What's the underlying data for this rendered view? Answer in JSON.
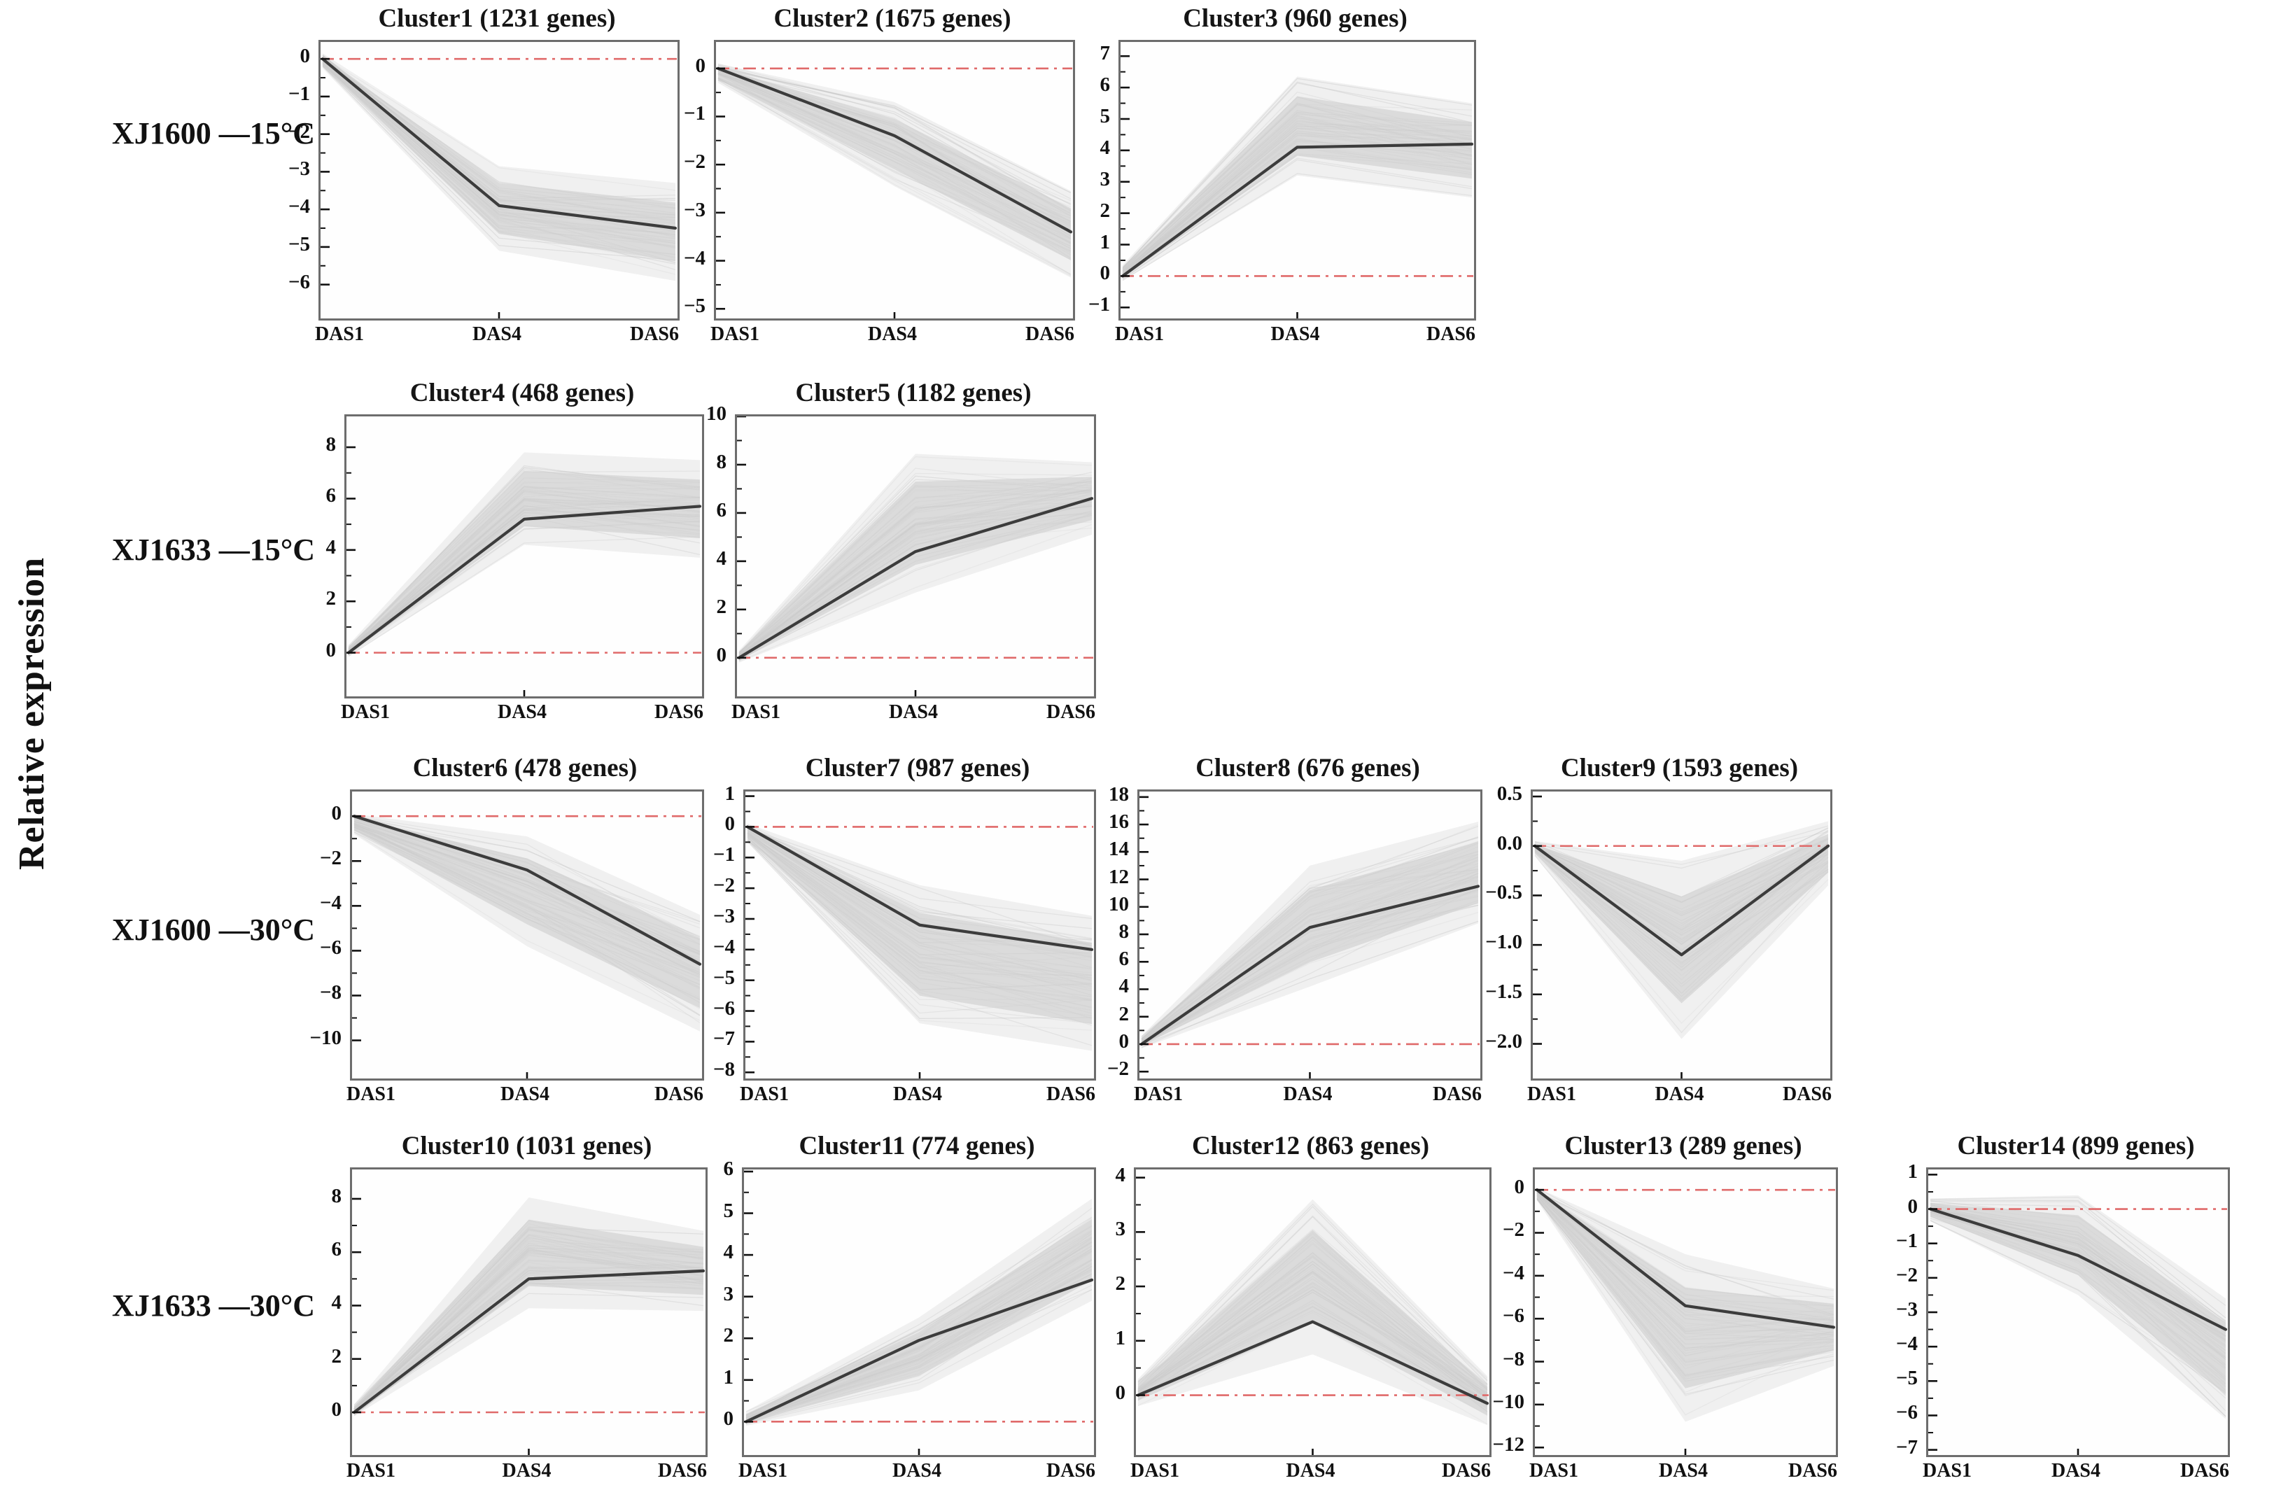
{
  "figure": {
    "ylabel": "Relative expression",
    "x_categories": [
      "DAS1",
      "DAS4",
      "DAS6"
    ],
    "row_labels": [
      "XJ1600 —15°C",
      "XJ1633 —15°C",
      "XJ1600 —30°C",
      "XJ1633 —30°C"
    ]
  },
  "colors": {
    "zero_line": "#e06a6a",
    "mean_line": "#3c3c3c",
    "band_outer": "#e4e4e4",
    "band_inner": "#d2d2d2",
    "thin_line": "#b9b9b9",
    "panel_border": "#6d6d6d",
    "tick": "#111111"
  },
  "chart_data": [
    {
      "type": "line",
      "title": "Cluster1 (1231 genes)",
      "row": 0,
      "col": 0,
      "x": [
        "DAS1",
        "DAS4",
        "DAS6"
      ],
      "series": [
        {
          "name": "cluster mean",
          "values": [
            0,
            -3.9,
            -4.5
          ]
        }
      ],
      "band_low": [
        -0.25,
        -5.1,
        -5.9
      ],
      "band_high": [
        0.15,
        -2.85,
        -3.3
      ],
      "ylim": [
        -6.9,
        0.45
      ],
      "yticks": [
        0,
        -1,
        -2,
        -3,
        -4,
        -5,
        -6
      ],
      "ytick_labels": [
        "0",
        "−1",
        "−2",
        "−3",
        "−4",
        "−5",
        "−6"
      ],
      "zero_line": 0
    },
    {
      "type": "line",
      "title": "Cluster2 (1675 genes)",
      "row": 0,
      "col": 1,
      "x": [
        "DAS1",
        "DAS4",
        "DAS6"
      ],
      "series": [
        {
          "name": "cluster mean",
          "values": [
            0,
            -1.4,
            -3.4
          ]
        }
      ],
      "band_low": [
        -0.3,
        -2.45,
        -4.35
      ],
      "band_high": [
        0.1,
        -0.7,
        -2.55
      ],
      "ylim": [
        -5.2,
        0.55
      ],
      "yticks": [
        0,
        -1,
        -2,
        -3,
        -4,
        -5
      ],
      "ytick_labels": [
        "0",
        "−1",
        "−2",
        "−3",
        "−4",
        "−5"
      ],
      "zero_line": 0
    },
    {
      "type": "line",
      "title": "Cluster3 (960 genes)",
      "row": 0,
      "col": 2,
      "x": [
        "DAS1",
        "DAS4",
        "DAS6"
      ],
      "series": [
        {
          "name": "cluster mean",
          "values": [
            0,
            4.1,
            4.2
          ]
        }
      ],
      "band_low": [
        -0.15,
        3.2,
        2.5
      ],
      "band_high": [
        0.35,
        6.35,
        5.5
      ],
      "ylim": [
        -1.35,
        7.45
      ],
      "yticks": [
        7,
        6,
        5,
        4,
        3,
        2,
        1,
        0,
        -1
      ],
      "ytick_labels": [
        "7",
        "6",
        "5",
        "4",
        "3",
        "2",
        "1",
        "0",
        "−1"
      ],
      "zero_line": 0
    },
    {
      "type": "line",
      "title": "Cluster4 (468 genes)",
      "row": 1,
      "col": 0,
      "x": [
        "DAS1",
        "DAS4",
        "DAS6"
      ],
      "series": [
        {
          "name": "cluster mean",
          "values": [
            0,
            5.2,
            5.7
          ]
        }
      ],
      "band_low": [
        -0.15,
        4.2,
        3.7
      ],
      "band_high": [
        0.3,
        7.8,
        7.5
      ],
      "ylim": [
        -1.7,
        9.2
      ],
      "yticks": [
        8,
        6,
        4,
        2,
        0
      ],
      "ytick_labels": [
        "8",
        "6",
        "4",
        "2",
        "0"
      ],
      "zero_line": 0
    },
    {
      "type": "line",
      "title": "Cluster5 (1182 genes)",
      "row": 1,
      "col": 1,
      "x": [
        "DAS1",
        "DAS4",
        "DAS6"
      ],
      "series": [
        {
          "name": "cluster mean",
          "values": [
            0,
            4.4,
            6.6
          ]
        }
      ],
      "band_low": [
        -0.2,
        2.7,
        5.1
      ],
      "band_high": [
        0.3,
        8.45,
        8.1
      ],
      "ylim": [
        -1.6,
        10
      ],
      "yticks": [
        10,
        8,
        6,
        4,
        2,
        0
      ],
      "ytick_labels": [
        "10",
        "8",
        "6",
        "4",
        "2",
        "0"
      ],
      "zero_line": 0
    },
    {
      "type": "line",
      "title": "Cluster6 (478 genes)",
      "row": 2,
      "col": 0,
      "x": [
        "DAS1",
        "DAS4",
        "DAS6"
      ],
      "series": [
        {
          "name": "cluster mean",
          "values": [
            0,
            -2.4,
            -6.6
          ]
        }
      ],
      "band_low": [
        -0.8,
        -5.8,
        -9.6
      ],
      "band_high": [
        0.1,
        -0.9,
        -4.4
      ],
      "ylim": [
        -11.7,
        1.1
      ],
      "yticks": [
        0,
        -2,
        -4,
        -6,
        -8,
        -10
      ],
      "ytick_labels": [
        "0",
        "−2",
        "−4",
        "−6",
        "−8",
        "−10"
      ],
      "zero_line": 0
    },
    {
      "type": "line",
      "title": "Cluster7 (987 genes)",
      "row": 2,
      "col": 1,
      "x": [
        "DAS1",
        "DAS4",
        "DAS6"
      ],
      "series": [
        {
          "name": "cluster mean",
          "values": [
            0,
            -3.2,
            -4.0
          ]
        }
      ],
      "band_low": [
        -0.5,
        -6.4,
        -7.3
      ],
      "band_high": [
        0.1,
        -1.9,
        -2.9
      ],
      "ylim": [
        -8.2,
        1.15
      ],
      "yticks": [
        1,
        0,
        -1,
        -2,
        -3,
        -4,
        -5,
        -6,
        -7,
        -8
      ],
      "ytick_labels": [
        "1",
        "0",
        "−1",
        "−2",
        "−3",
        "−4",
        "−5",
        "−6",
        "−7",
        "−8"
      ],
      "zero_line": 0
    },
    {
      "type": "line",
      "title": "Cluster8 (676 genes)",
      "row": 2,
      "col": 2,
      "x": [
        "DAS1",
        "DAS4",
        "DAS6"
      ],
      "series": [
        {
          "name": "cluster mean",
          "values": [
            0,
            8.5,
            11.5
          ]
        }
      ],
      "band_low": [
        -0.3,
        4.2,
        8.8
      ],
      "band_high": [
        0.6,
        13.0,
        16.2
      ],
      "ylim": [
        -2.5,
        18.4
      ],
      "yticks": [
        18,
        16,
        14,
        12,
        10,
        8,
        6,
        4,
        2,
        0,
        -2
      ],
      "ytick_labels": [
        "18",
        "16",
        "14",
        "12",
        "10",
        "8",
        "6",
        "4",
        "2",
        "0",
        "−2"
      ],
      "zero_line": 0
    },
    {
      "type": "line",
      "title": "Cluster9 (1593 genes)",
      "row": 2,
      "col": 3,
      "x": [
        "DAS1",
        "DAS4",
        "DAS6"
      ],
      "series": [
        {
          "name": "cluster mean",
          "values": [
            0,
            -1.1,
            0.0
          ]
        }
      ],
      "band_low": [
        -0.1,
        -1.95,
        -0.4
      ],
      "band_high": [
        0.05,
        -0.15,
        0.25
      ],
      "ylim": [
        -2.35,
        0.55
      ],
      "yticks": [
        0.5,
        0,
        -0.5,
        -1,
        -1.5,
        -2
      ],
      "ytick_labels": [
        "0.5",
        "0.0",
        "−0.5",
        "−1.0",
        "−1.5",
        "−2.0"
      ],
      "zero_line": 0
    },
    {
      "type": "line",
      "title": "Cluster10 (1031 genes)",
      "row": 3,
      "col": 0,
      "x": [
        "DAS1",
        "DAS4",
        "DAS6"
      ],
      "series": [
        {
          "name": "cluster mean",
          "values": [
            0,
            5.0,
            5.3
          ]
        }
      ],
      "band_low": [
        -0.15,
        3.9,
        3.8
      ],
      "band_high": [
        0.3,
        8.05,
        6.8
      ],
      "ylim": [
        -1.6,
        9.1
      ],
      "yticks": [
        8,
        6,
        4,
        2,
        0
      ],
      "ytick_labels": [
        "8",
        "6",
        "4",
        "2",
        "0"
      ],
      "zero_line": 0
    },
    {
      "type": "line",
      "title": "Cluster11 (774 genes)",
      "row": 3,
      "col": 1,
      "x": [
        "DAS1",
        "DAS4",
        "DAS6"
      ],
      "series": [
        {
          "name": "cluster mean",
          "values": [
            0,
            1.95,
            3.4
          ]
        }
      ],
      "band_low": [
        -0.1,
        0.75,
        2.9
      ],
      "band_high": [
        0.25,
        2.5,
        5.35
      ],
      "ylim": [
        -0.8,
        6.05
      ],
      "yticks": [
        6,
        5,
        4,
        3,
        2,
        1,
        0
      ],
      "ytick_labels": [
        "6",
        "5",
        "4",
        "3",
        "2",
        "1",
        "0"
      ],
      "zero_line": 0
    },
    {
      "type": "line",
      "title": "Cluster12 (863 genes)",
      "row": 3,
      "col": 2,
      "x": [
        "DAS1",
        "DAS4",
        "DAS6"
      ],
      "series": [
        {
          "name": "cluster mean",
          "values": [
            0,
            1.35,
            -0.15
          ]
        }
      ],
      "band_low": [
        -0.2,
        0.75,
        -0.55
      ],
      "band_high": [
        0.3,
        3.6,
        0.35
      ],
      "ylim": [
        -1.1,
        4.15
      ],
      "yticks": [
        4,
        3,
        2,
        1,
        0
      ],
      "ytick_labels": [
        "4",
        "3",
        "2",
        "1",
        "0"
      ],
      "zero_line": 0
    },
    {
      "type": "line",
      "title": "Cluster13 (289 genes)",
      "row": 3,
      "col": 3,
      "x": [
        "DAS1",
        "DAS4",
        "DAS6"
      ],
      "series": [
        {
          "name": "cluster mean",
          "values": [
            0,
            -5.4,
            -6.4
          ]
        }
      ],
      "band_low": [
        -0.5,
        -10.8,
        -8.2
      ],
      "band_high": [
        0.1,
        -3.0,
        -4.6
      ],
      "ylim": [
        -12.35,
        0.95
      ],
      "yticks": [
        0,
        -2,
        -4,
        -6,
        -8,
        -10,
        -12
      ],
      "ytick_labels": [
        "0",
        "−2",
        "−4",
        "−6",
        "−8",
        "−10",
        "−12"
      ],
      "zero_line": 0
    },
    {
      "type": "line",
      "title": "Cluster14 (899 genes)",
      "row": 3,
      "col": 4,
      "x": [
        "DAS1",
        "DAS4",
        "DAS6"
      ],
      "series": [
        {
          "name": "cluster mean",
          "values": [
            0,
            -1.35,
            -3.5
          ]
        }
      ],
      "band_low": [
        -0.35,
        -2.5,
        -6.1
      ],
      "band_high": [
        0.3,
        0.4,
        -2.6
      ],
      "ylim": [
        -7.15,
        1.15
      ],
      "yticks": [
        1,
        0,
        -1,
        -2,
        -3,
        -4,
        -5,
        -6,
        -7
      ],
      "ytick_labels": [
        "1",
        "0",
        "−1",
        "−2",
        "−3",
        "−4",
        "−5",
        "−6",
        "−7"
      ],
      "zero_line": 0
    }
  ]
}
